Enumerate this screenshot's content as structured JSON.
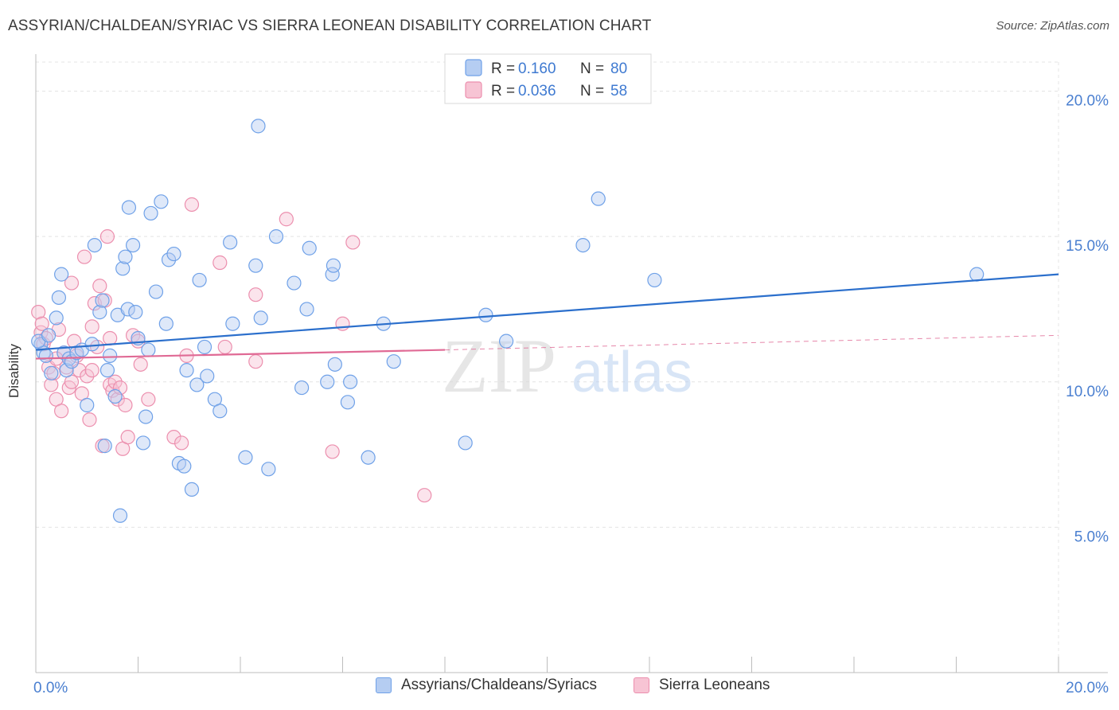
{
  "title": "ASSYRIAN/CHALDEAN/SYRIAC VS SIERRA LEONEAN DISABILITY CORRELATION CHART",
  "source": "Source: ZipAtlas.com",
  "watermark": {
    "zip": "ZIP",
    "atlas": "atlas"
  },
  "colors": {
    "blue": "#6fa1e8",
    "blue_fill": "#b5cdf2",
    "blue_line": "#2b6fcc",
    "pink": "#ec8fae",
    "pink_fill": "#f7c4d4",
    "pink_line": "#e06a95",
    "axis_text": "#4a7fd0"
  },
  "legend": {
    "rows": [
      {
        "r_label": "R =",
        "r_value": "0.160",
        "n_label": "N =",
        "n_value": "80"
      },
      {
        "r_label": "R =",
        "r_value": "0.036",
        "n_label": "N =",
        "n_value": "58"
      }
    ]
  },
  "chart_data": {
    "type": "scatter",
    "title": "ASSYRIAN/CHALDEAN/SYRIAC VS SIERRA LEONEAN DISABILITY CORRELATION CHART",
    "xlabel": "",
    "ylabel": "Disability",
    "xlim": [
      0,
      20
    ],
    "ylim": [
      0,
      21
    ],
    "x_tick_labels": [
      "0.0%",
      "20.0%"
    ],
    "y_ticks": [
      5,
      10,
      15,
      20
    ],
    "y_tick_labels": [
      "5.0%",
      "10.0%",
      "15.0%",
      "20.0%"
    ],
    "grid": true,
    "legend_position": "top-center",
    "series": [
      {
        "name": "Assyrians/Chaldeans/Syriacs",
        "color": "#6fa1e8",
        "trend": {
          "x": [
            0,
            20
          ],
          "y": [
            11.1,
            13.7
          ]
        },
        "points": [
          [
            0.1,
            11.3
          ],
          [
            0.15,
            11.0
          ],
          [
            0.2,
            10.9
          ],
          [
            0.3,
            10.3
          ],
          [
            0.4,
            12.2
          ],
          [
            0.45,
            12.9
          ],
          [
            0.5,
            13.7
          ],
          [
            0.55,
            11.0
          ],
          [
            0.6,
            10.4
          ],
          [
            0.65,
            10.8
          ],
          [
            0.7,
            10.7
          ],
          [
            0.8,
            11.0
          ],
          [
            0.9,
            11.1
          ],
          [
            1.0,
            9.2
          ],
          [
            1.1,
            11.3
          ],
          [
            1.15,
            14.7
          ],
          [
            1.25,
            12.4
          ],
          [
            1.3,
            12.8
          ],
          [
            1.35,
            7.8
          ],
          [
            1.4,
            10.4
          ],
          [
            1.45,
            10.9
          ],
          [
            1.55,
            9.5
          ],
          [
            1.6,
            12.3
          ],
          [
            1.65,
            5.4
          ],
          [
            1.7,
            13.9
          ],
          [
            1.75,
            14.3
          ],
          [
            1.8,
            12.5
          ],
          [
            1.82,
            16.0
          ],
          [
            1.9,
            14.7
          ],
          [
            2.0,
            11.5
          ],
          [
            2.1,
            7.9
          ],
          [
            2.15,
            8.8
          ],
          [
            2.2,
            11.1
          ],
          [
            2.25,
            15.8
          ],
          [
            2.35,
            13.1
          ],
          [
            2.45,
            16.2
          ],
          [
            2.55,
            12.0
          ],
          [
            2.6,
            14.2
          ],
          [
            2.7,
            14.4
          ],
          [
            2.8,
            7.2
          ],
          [
            2.9,
            7.1
          ],
          [
            2.95,
            10.4
          ],
          [
            3.05,
            6.3
          ],
          [
            3.15,
            9.9
          ],
          [
            3.2,
            13.5
          ],
          [
            3.3,
            11.2
          ],
          [
            3.35,
            10.2
          ],
          [
            3.5,
            9.4
          ],
          [
            3.6,
            9.0
          ],
          [
            3.8,
            14.8
          ],
          [
            3.85,
            12.0
          ],
          [
            4.1,
            7.4
          ],
          [
            4.3,
            14.0
          ],
          [
            4.35,
            18.8
          ],
          [
            4.4,
            12.2
          ],
          [
            4.55,
            7.0
          ],
          [
            4.7,
            15.0
          ],
          [
            5.05,
            13.4
          ],
          [
            5.2,
            9.8
          ],
          [
            5.3,
            12.5
          ],
          [
            5.35,
            14.6
          ],
          [
            5.7,
            10.0
          ],
          [
            5.8,
            13.7
          ],
          [
            5.82,
            14.0
          ],
          [
            5.85,
            10.6
          ],
          [
            6.1,
            9.3
          ],
          [
            6.15,
            10.0
          ],
          [
            6.5,
            7.4
          ],
          [
            6.8,
            12.0
          ],
          [
            7.0,
            10.7
          ],
          [
            8.4,
            7.9
          ],
          [
            8.8,
            12.3
          ],
          [
            9.2,
            11.4
          ],
          [
            10.7,
            14.7
          ],
          [
            11.0,
            16.3
          ],
          [
            12.1,
            13.5
          ],
          [
            18.4,
            13.7
          ],
          [
            0.05,
            11.4
          ],
          [
            0.25,
            11.6
          ],
          [
            1.95,
            12.4
          ]
        ]
      },
      {
        "name": "Sierra Leoneans",
        "color": "#ec8fae",
        "trend": {
          "x": [
            0,
            8
          ],
          "y": [
            10.8,
            11.1
          ]
        },
        "trend_dashed": {
          "x": [
            8,
            20
          ],
          "y": [
            11.1,
            11.6
          ]
        },
        "points": [
          [
            0.05,
            12.4
          ],
          [
            0.1,
            11.7
          ],
          [
            0.15,
            11.3
          ],
          [
            0.2,
            11.5
          ],
          [
            0.25,
            10.5
          ],
          [
            0.3,
            9.9
          ],
          [
            0.35,
            10.3
          ],
          [
            0.4,
            9.4
          ],
          [
            0.45,
            11.8
          ],
          [
            0.5,
            9.0
          ],
          [
            0.55,
            11.0
          ],
          [
            0.6,
            10.5
          ],
          [
            0.65,
            9.8
          ],
          [
            0.7,
            13.4
          ],
          [
            0.75,
            11.4
          ],
          [
            0.8,
            10.9
          ],
          [
            0.85,
            10.4
          ],
          [
            0.9,
            9.6
          ],
          [
            0.95,
            14.3
          ],
          [
            1.0,
            10.2
          ],
          [
            1.05,
            8.7
          ],
          [
            1.1,
            11.9
          ],
          [
            1.15,
            12.7
          ],
          [
            1.2,
            11.2
          ],
          [
            1.25,
            13.3
          ],
          [
            1.3,
            7.8
          ],
          [
            1.35,
            12.8
          ],
          [
            1.4,
            15.0
          ],
          [
            1.45,
            9.9
          ],
          [
            1.5,
            9.7
          ],
          [
            1.55,
            10.0
          ],
          [
            1.6,
            9.4
          ],
          [
            1.65,
            9.8
          ],
          [
            1.7,
            7.7
          ],
          [
            1.75,
            9.2
          ],
          [
            1.8,
            8.1
          ],
          [
            1.9,
            11.6
          ],
          [
            2.0,
            11.4
          ],
          [
            2.05,
            10.6
          ],
          [
            2.2,
            9.4
          ],
          [
            2.7,
            8.1
          ],
          [
            2.85,
            7.9
          ],
          [
            2.95,
            10.9
          ],
          [
            3.05,
            16.1
          ],
          [
            3.6,
            14.1
          ],
          [
            3.7,
            11.2
          ],
          [
            4.3,
            13.0
          ],
          [
            4.3,
            10.7
          ],
          [
            4.9,
            15.6
          ],
          [
            5.8,
            7.6
          ],
          [
            6.0,
            12.0
          ],
          [
            6.2,
            14.8
          ],
          [
            7.6,
            6.1
          ],
          [
            0.12,
            12.0
          ],
          [
            0.4,
            10.8
          ],
          [
            1.1,
            10.4
          ],
          [
            1.45,
            11.5
          ],
          [
            0.7,
            10.0
          ]
        ]
      }
    ]
  },
  "bottom_legend": [
    "Assyrians/Chaldeans/Syriacs",
    "Sierra Leoneans"
  ]
}
